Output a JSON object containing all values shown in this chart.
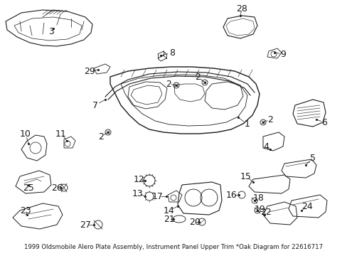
{
  "title": "1999 Oldsmobile Alero Plate Assembly, Instrument Panel Upper Trim *Oak Diagram for 22616717",
  "bg_color": "#ffffff",
  "line_color": "#1a1a1a",
  "fig_width": 4.89,
  "fig_height": 3.6,
  "dpi": 100,
  "label_fontsize": 9,
  "subtitle_fontsize": 6.2,
  "subtitle": "1999 Oldsmobile Alero Plate Assembly, Instrument Panel Upper Trim *Oak Diagram for 22616717"
}
